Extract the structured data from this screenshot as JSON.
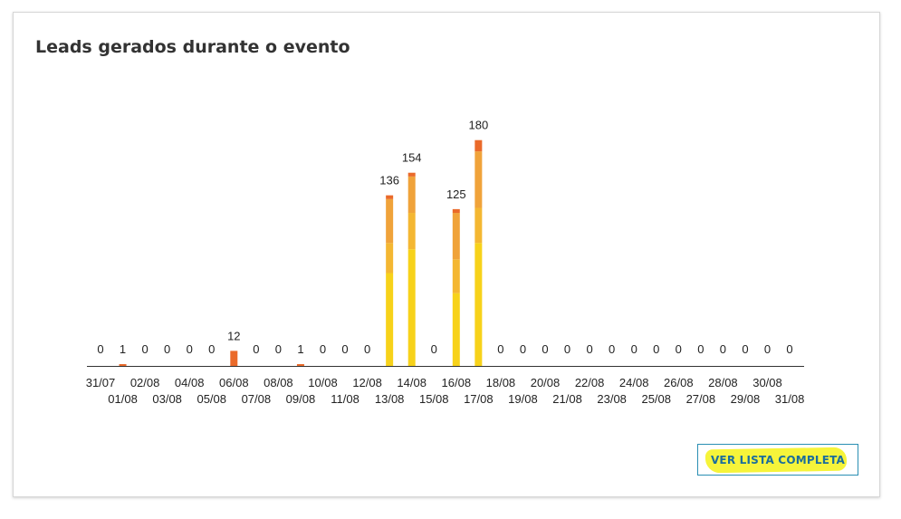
{
  "card": {
    "title": "Leads gerados durante o evento",
    "button_label": "VER LISTA COMPLETA"
  },
  "colors": {
    "seg1": "#f7d21a",
    "seg2": "#f4b732",
    "seg3": "#f0a33a",
    "seg4": "#ea6a2a",
    "axis": "#333333",
    "button_border": "#2a8fb3",
    "button_text": "#1b6e9c",
    "highlight": "#f6f43a"
  },
  "chart_data": {
    "type": "bar",
    "stacked": true,
    "title": "Leads gerados durante o evento",
    "categories": [
      "31/07",
      "01/08",
      "02/08",
      "03/08",
      "04/08",
      "05/08",
      "06/08",
      "07/08",
      "08/08",
      "09/08",
      "10/08",
      "11/08",
      "12/08",
      "13/08",
      "14/08",
      "15/08",
      "16/08",
      "17/08",
      "18/08",
      "19/08",
      "20/08",
      "21/08",
      "22/08",
      "23/08",
      "24/08",
      "25/08",
      "26/08",
      "27/08",
      "28/08",
      "29/08",
      "30/08",
      "31/08"
    ],
    "totals": [
      0,
      1,
      0,
      0,
      0,
      0,
      12,
      0,
      0,
      1,
      0,
      0,
      0,
      136,
      154,
      0,
      125,
      180,
      0,
      0,
      0,
      0,
      0,
      0,
      0,
      0,
      0,
      0,
      0,
      0,
      0,
      0
    ],
    "series": [
      {
        "values": [
          0,
          0,
          0,
          0,
          0,
          0,
          0,
          0,
          0,
          0,
          0,
          0,
          0,
          74,
          93,
          0,
          58,
          98,
          0,
          0,
          0,
          0,
          0,
          0,
          0,
          0,
          0,
          0,
          0,
          0,
          0,
          0
        ]
      },
      {
        "values": [
          0,
          0,
          0,
          0,
          0,
          0,
          0,
          0,
          0,
          0,
          0,
          0,
          0,
          24,
          29,
          0,
          27,
          28,
          0,
          0,
          0,
          0,
          0,
          0,
          0,
          0,
          0,
          0,
          0,
          0,
          0,
          0
        ]
      },
      {
        "values": [
          0,
          0,
          0,
          0,
          0,
          0,
          0,
          0,
          0,
          0,
          0,
          0,
          0,
          35,
          29,
          0,
          37,
          45,
          0,
          0,
          0,
          0,
          0,
          0,
          0,
          0,
          0,
          0,
          0,
          0,
          0,
          0
        ]
      },
      {
        "values": [
          0,
          1,
          0,
          0,
          0,
          0,
          12,
          0,
          0,
          1,
          0,
          0,
          0,
          3,
          3,
          0,
          3,
          9,
          0,
          0,
          0,
          0,
          0,
          0,
          0,
          0,
          0,
          0,
          0,
          0,
          0,
          0
        ]
      }
    ],
    "ylim": [
      0,
      200
    ],
    "grid": false,
    "legend": false
  }
}
